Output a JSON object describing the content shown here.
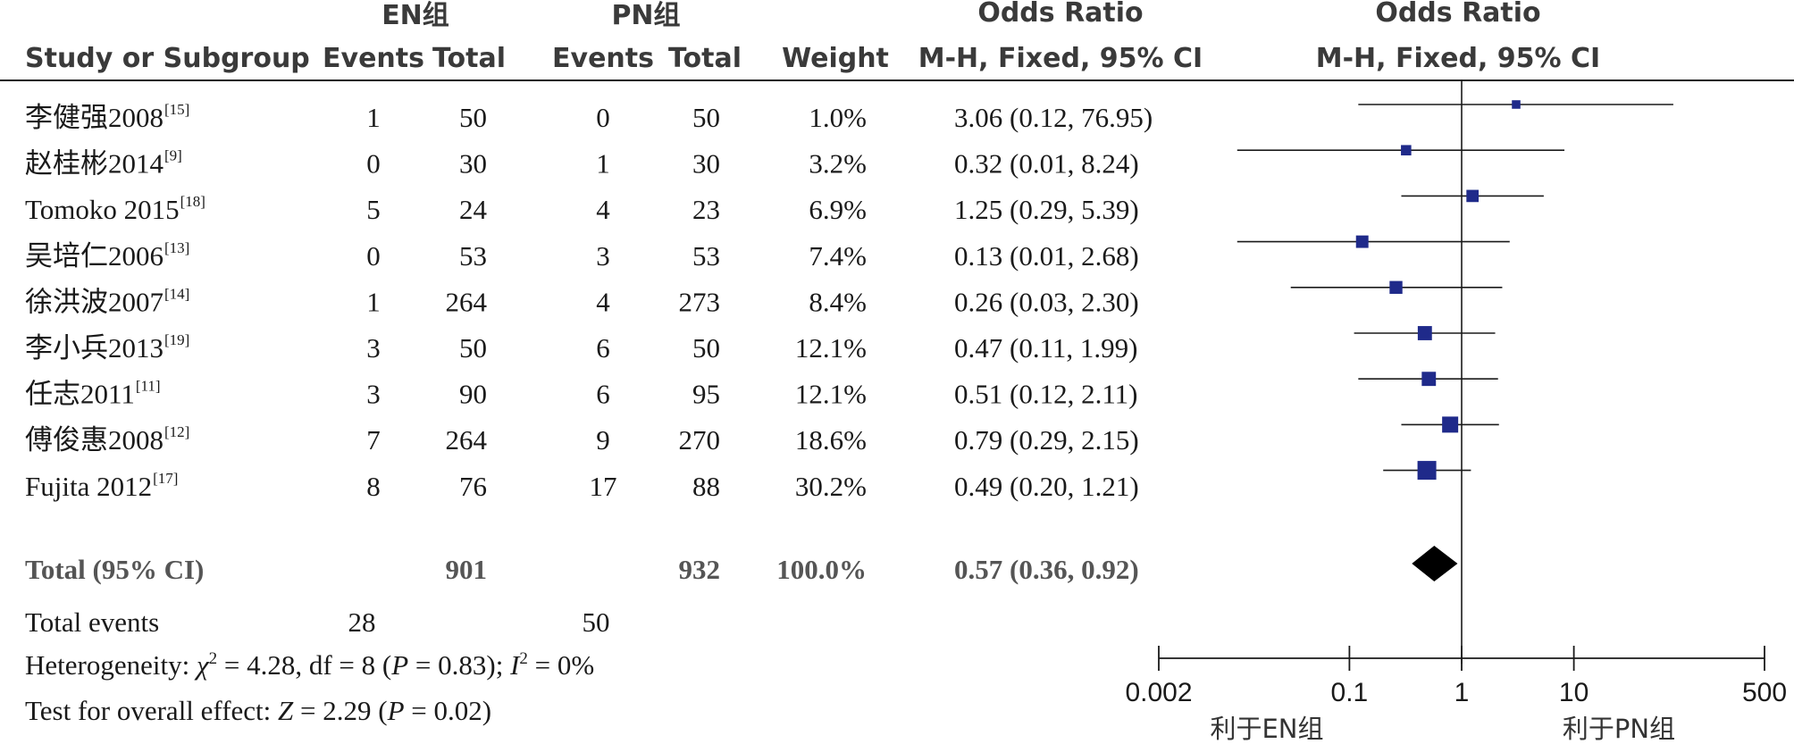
{
  "chart_data": {
    "type": "forest",
    "headers": {
      "study": "Study or Subgroup",
      "group_en": "EN组",
      "group_pn": "PN组",
      "events": "Events",
      "total": "Total",
      "weight": "Weight",
      "or_title": "Odds Ratio",
      "or_method": "M-H, Fixed, 95% CI",
      "plot_title": "Odds Ratio",
      "plot_method": "M-H, Fixed, 95% CI"
    },
    "studies": [
      {
        "name": "李健强2008",
        "ref": "[15]",
        "en_events": "1",
        "en_total": "50",
        "pn_events": "0",
        "pn_total": "50",
        "weight_label": "1.0%",
        "ci_text": "3.06 (0.12, 76.95)",
        "weight": 1.0,
        "or": 3.06,
        "lo": 0.12,
        "hi": 76.95
      },
      {
        "name": "赵桂彬2014",
        "ref": "[9]",
        "en_events": "0",
        "en_total": "30",
        "pn_events": "1",
        "pn_total": "30",
        "weight_label": "3.2%",
        "ci_text": "0.32 (0.01, 8.24)",
        "weight": 3.2,
        "or": 0.32,
        "lo": 0.01,
        "hi": 8.24
      },
      {
        "name": "Tomoko 2015",
        "ref": "[18]",
        "en_events": "5",
        "en_total": "24",
        "pn_events": "4",
        "pn_total": "23",
        "weight_label": "6.9%",
        "ci_text": "1.25 (0.29, 5.39)",
        "weight": 6.9,
        "or": 1.25,
        "lo": 0.29,
        "hi": 5.39
      },
      {
        "name": "吴培仁2006",
        "ref": "[13]",
        "en_events": "0",
        "en_total": "53",
        "pn_events": "3",
        "pn_total": "53",
        "weight_label": "7.4%",
        "ci_text": "0.13 (0.01, 2.68)",
        "weight": 7.4,
        "or": 0.13,
        "lo": 0.01,
        "hi": 2.68
      },
      {
        "name": "徐洪波2007",
        "ref": "[14]",
        "en_events": "1",
        "en_total": "264",
        "pn_events": "4",
        "pn_total": "273",
        "weight_label": "8.4%",
        "ci_text": "0.26 (0.03, 2.30)",
        "weight": 8.4,
        "or": 0.26,
        "lo": 0.03,
        "hi": 2.3
      },
      {
        "name": "李小兵2013",
        "ref": "[19]",
        "en_events": "3",
        "en_total": "50",
        "pn_events": "6",
        "pn_total": "50",
        "weight_label": "12.1%",
        "ci_text": "0.47 (0.11, 1.99)",
        "weight": 12.1,
        "or": 0.47,
        "lo": 0.11,
        "hi": 1.99
      },
      {
        "name": "任志2011",
        "ref": "[11]",
        "en_events": "3",
        "en_total": "90",
        "pn_events": "6",
        "pn_total": "95",
        "weight_label": "12.1%",
        "ci_text": "0.51 (0.12, 2.11)",
        "weight": 12.1,
        "or": 0.51,
        "lo": 0.12,
        "hi": 2.11
      },
      {
        "name": "傅俊惠2008",
        "ref": "[12]",
        "en_events": "7",
        "en_total": "264",
        "pn_events": "9",
        "pn_total": "270",
        "weight_label": "18.6%",
        "ci_text": "0.79 (0.29, 2.15)",
        "weight": 18.6,
        "or": 0.79,
        "lo": 0.29,
        "hi": 2.15
      },
      {
        "name": "Fujita 2012",
        "ref": "[17]",
        "en_events": "8",
        "en_total": "76",
        "pn_events": "17",
        "pn_total": "88",
        "weight_label": "30.2%",
        "ci_text": "0.49 (0.20, 1.21)",
        "weight": 30.2,
        "or": 0.49,
        "lo": 0.2,
        "hi": 1.21
      }
    ],
    "total": {
      "label": "Total (95% CI)",
      "en_total": "901",
      "pn_total": "932",
      "weight_label": "100.0%",
      "ci_text": "0.57 (0.36, 0.92)",
      "or": 0.57,
      "lo": 0.36,
      "hi": 0.92
    },
    "total_events": {
      "label": "Total events",
      "en": "28",
      "pn": "50"
    },
    "heterogeneity": {
      "prefix": "Heterogeneity: ",
      "chi": "χ",
      "two": "2",
      "chi_value": " = 4.28, df = 8 (",
      "p1": "P",
      "p1_value": " = 0.83); ",
      "i": "I",
      "i2": "2",
      "i_value": " = 0%"
    },
    "overall": {
      "prefix": "Test for overall effect: ",
      "z": "Z",
      "z_value": " = 2.29 (",
      "p": "P",
      "p_value": " = 0.02)"
    },
    "x_axis": {
      "scale": "log",
      "ticks": [
        0.002,
        0.1,
        1,
        10,
        500
      ],
      "tick_labels": [
        "0.002",
        "0.1",
        "1",
        "10",
        "500"
      ],
      "min": 0.002,
      "max": 500
    },
    "favors_left": "利于EN组",
    "favors_right": "利于PN组",
    "colors": {
      "marker": "#1f2a8a",
      "line": "#1a1a1a",
      "diamond": "#000000"
    }
  }
}
